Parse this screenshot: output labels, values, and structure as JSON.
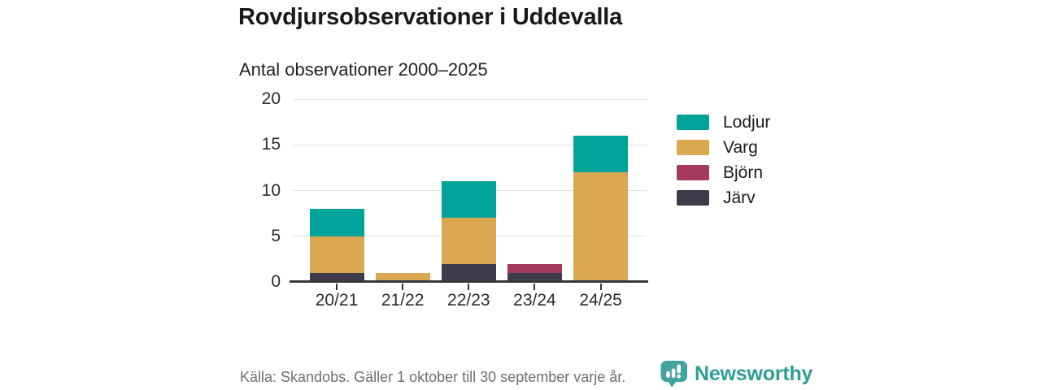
{
  "header": {
    "title": "Rovdjursobservationer i Uddevalla",
    "subtitle": "Antal observationer 2000–2025"
  },
  "footer": {
    "source": "Källa: Skandobs. Gäller 1 oktober till 30 september varje år.",
    "brand": "Newsworthy",
    "brand_color": "#2e9d95",
    "logo_icon": "speech-bubble-bar-chart"
  },
  "chart_data": {
    "type": "bar",
    "stacked": true,
    "title": "Rovdjursobservationer i Uddevalla",
    "subtitle": "Antal observationer 2000–2025",
    "xlabel": "",
    "ylabel": "",
    "categories": [
      "20/21",
      "21/22",
      "22/23",
      "23/24",
      "24/25"
    ],
    "series": [
      {
        "name": "Järv",
        "color": "#3e3b4a",
        "values": [
          1,
          0,
          2,
          1,
          0
        ]
      },
      {
        "name": "Björn",
        "color": "#a53a5e",
        "values": [
          0,
          0,
          0,
          1,
          0
        ]
      },
      {
        "name": "Varg",
        "color": "#d9a851",
        "values": [
          4,
          1,
          5,
          0,
          12
        ]
      },
      {
        "name": "Lodjur",
        "color": "#00a399",
        "values": [
          3,
          0,
          4,
          0,
          4
        ]
      }
    ],
    "totals": [
      8,
      1,
      11,
      2,
      16
    ],
    "legend": [
      {
        "label": "Lodjur",
        "color": "#00a399"
      },
      {
        "label": "Varg",
        "color": "#d9a851"
      },
      {
        "label": "Björn",
        "color": "#a53a5e"
      },
      {
        "label": "Järv",
        "color": "#3e3b4a"
      }
    ],
    "legend_position": "right",
    "yticks": [
      0,
      5,
      10,
      15,
      20
    ],
    "ylim": [
      0,
      20
    ],
    "grid": true,
    "grid_color": "#e3e3e3",
    "axis_color": "#39383f"
  }
}
